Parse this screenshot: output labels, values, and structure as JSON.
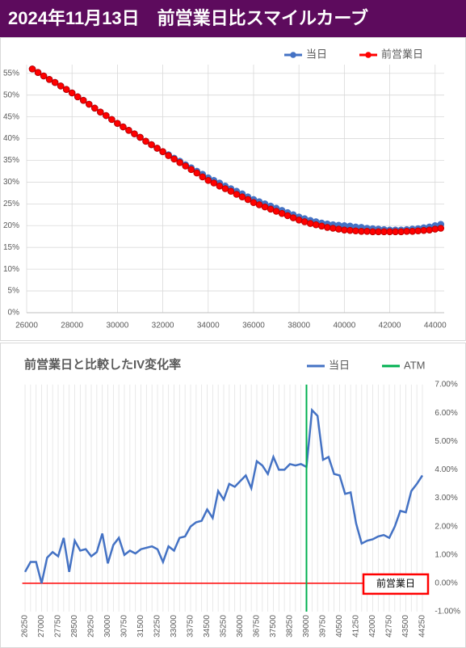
{
  "header": {
    "title": "2024年11月13日　前営業日比スマイルカーブ"
  },
  "chart_data": [
    {
      "type": "line",
      "x": [
        26250,
        26500,
        26750,
        27000,
        27250,
        27500,
        27750,
        28000,
        28250,
        28500,
        28750,
        29000,
        29250,
        29500,
        29750,
        30000,
        30250,
        30500,
        30750,
        31000,
        31250,
        31500,
        31750,
        32000,
        32250,
        32500,
        32750,
        33000,
        33250,
        33500,
        33750,
        34000,
        34250,
        34500,
        34750,
        35000,
        35250,
        35500,
        35750,
        36000,
        36250,
        36500,
        36750,
        37000,
        37250,
        37500,
        37750,
        38000,
        38250,
        38500,
        38750,
        39000,
        39250,
        39500,
        39750,
        40000,
        40250,
        40500,
        40750,
        41000,
        41250,
        41500,
        41750,
        42000,
        42250,
        42500,
        42750,
        43000,
        43250,
        43500,
        43750,
        44000,
        44250
      ],
      "series": [
        {
          "name": "当日",
          "color": "#4472c4",
          "values": [
            56,
            55.2,
            54.4,
            53.6,
            52.9,
            52.1,
            51.3,
            50.5,
            49.6,
            48.8,
            47.9,
            47.0,
            46.1,
            45.3,
            44.4,
            43.5,
            42.7,
            41.9,
            41.1,
            40.3,
            39.4,
            38.6,
            37.8,
            37.0,
            36.3,
            35.5,
            34.8,
            34.0,
            33.3,
            32.5,
            31.8,
            31.0,
            30.4,
            29.8,
            29.1,
            28.5,
            27.9,
            27.3,
            26.6,
            26.0,
            25.5,
            25.0,
            24.5,
            24.0,
            23.5,
            23.0,
            22.5,
            22.0,
            21.6,
            21.2,
            20.9,
            20.6,
            20.4,
            20.2,
            20.1,
            20.0,
            19.9,
            19.7,
            19.6,
            19.4,
            19.3,
            19.2,
            19.1,
            19.0,
            19.0,
            19.0,
            19.1,
            19.2,
            19.3,
            19.5,
            19.7,
            20.0,
            20.3
          ]
        },
        {
          "name": "前営業日",
          "color": "#ff0000",
          "values": [
            56,
            55.2,
            54.4,
            53.6,
            52.9,
            52.1,
            51.3,
            50.5,
            49.6,
            48.8,
            47.9,
            47.0,
            46.1,
            45.3,
            44.4,
            43.5,
            42.7,
            41.9,
            41.1,
            40.3,
            39.4,
            38.6,
            37.8,
            37.0,
            36.1,
            35.3,
            34.5,
            33.7,
            32.9,
            32.1,
            31.2,
            30.4,
            29.8,
            29.1,
            28.5,
            27.9,
            27.2,
            26.6,
            26.0,
            25.3,
            24.8,
            24.3,
            23.8,
            23.3,
            22.8,
            22.3,
            21.8,
            21.3,
            20.9,
            20.5,
            20.2,
            19.9,
            19.6,
            19.4,
            19.2,
            19.0,
            18.9,
            18.8,
            18.7,
            18.7,
            18.6,
            18.6,
            18.6,
            18.6,
            18.6,
            18.6,
            18.7,
            18.7,
            18.8,
            18.9,
            19.0,
            19.2,
            19.4
          ]
        }
      ],
      "markers": true,
      "xlim": [
        26000,
        44400
      ],
      "xticks": [
        26000,
        28000,
        30000,
        32000,
        34000,
        36000,
        38000,
        40000,
        42000,
        44000
      ],
      "ylim": [
        0,
        57
      ],
      "yticks": [
        {
          "value": 0,
          "label": "0%"
        },
        {
          "value": 5,
          "label": "5%"
        },
        {
          "value": 10,
          "label": "10%"
        },
        {
          "value": 15,
          "label": "15%"
        },
        {
          "value": 20,
          "label": "20%"
        },
        {
          "value": 25,
          "label": "25%"
        },
        {
          "value": 30,
          "label": "30%"
        },
        {
          "value": 35,
          "label": "35%"
        },
        {
          "value": 40,
          "label": "40%"
        },
        {
          "value": 45,
          "label": "45%"
        },
        {
          "value": 50,
          "label": "50%"
        },
        {
          "value": 55,
          "label": "55%"
        }
      ],
      "grid": true,
      "legend": "top"
    },
    {
      "type": "line",
      "title": "前営業日と比較したIV変化率",
      "categories": [
        26250,
        null,
        null,
        27000,
        null,
        null,
        27750,
        null,
        null,
        28500,
        null,
        null,
        29250,
        null,
        null,
        30000,
        null,
        null,
        30750,
        null,
        null,
        31500,
        null,
        null,
        32250,
        null,
        null,
        33000,
        null,
        null,
        33750,
        null,
        null,
        34500,
        null,
        null,
        35250,
        null,
        null,
        36000,
        null,
        null,
        36750,
        null,
        null,
        37500,
        null,
        null,
        38250,
        null,
        null,
        39000,
        null,
        null,
        39750,
        null,
        null,
        40500,
        null,
        null,
        41250,
        null,
        null,
        42000,
        null,
        null,
        42750,
        null,
        null,
        43500,
        null,
        null,
        44250
      ],
      "series": [
        {
          "name": "当日",
          "color": "#4472c4",
          "values": [
            0.4,
            0.75,
            0.75,
            0.0,
            0.9,
            1.1,
            0.95,
            1.6,
            0.4,
            1.5,
            1.15,
            1.2,
            0.95,
            1.1,
            1.75,
            0.7,
            1.35,
            1.6,
            1.0,
            1.15,
            1.05,
            1.2,
            1.25,
            1.3,
            1.2,
            0.75,
            1.3,
            1.15,
            1.6,
            1.65,
            2.0,
            2.15,
            2.2,
            2.6,
            2.3,
            3.25,
            2.95,
            3.5,
            3.4,
            3.6,
            3.8,
            3.35,
            4.3,
            4.15,
            3.85,
            4.45,
            4.0,
            4.0,
            4.2,
            4.15,
            4.2,
            4.1,
            6.1,
            5.9,
            4.35,
            4.45,
            3.85,
            3.8,
            3.15,
            3.2,
            2.1,
            1.4,
            1.5,
            1.55,
            1.65,
            1.7,
            1.6,
            2.0,
            2.55,
            2.5,
            3.25,
            3.5,
            3.8
          ]
        }
      ],
      "atm": {
        "name": "ATM",
        "color": "#00b050",
        "x": 39000
      },
      "reference_line": {
        "label": "前営業日",
        "value": 0,
        "color": "#ff0000"
      },
      "ylim": [
        -1,
        7
      ],
      "yticks": [
        {
          "value": -1,
          "label": "-1.00%"
        },
        {
          "value": 0,
          "label": "0.00%"
        },
        {
          "value": 1,
          "label": "1.00%"
        },
        {
          "value": 2,
          "label": "2.00%"
        },
        {
          "value": 3,
          "label": "3.00%"
        },
        {
          "value": 4,
          "label": "4.00%"
        },
        {
          "value": 5,
          "label": "5.00%"
        },
        {
          "value": 6,
          "label": "6.00%"
        },
        {
          "value": 7,
          "label": "7.00%"
        }
      ],
      "yaxis_position": "right",
      "grid": true,
      "legend": "top"
    }
  ]
}
